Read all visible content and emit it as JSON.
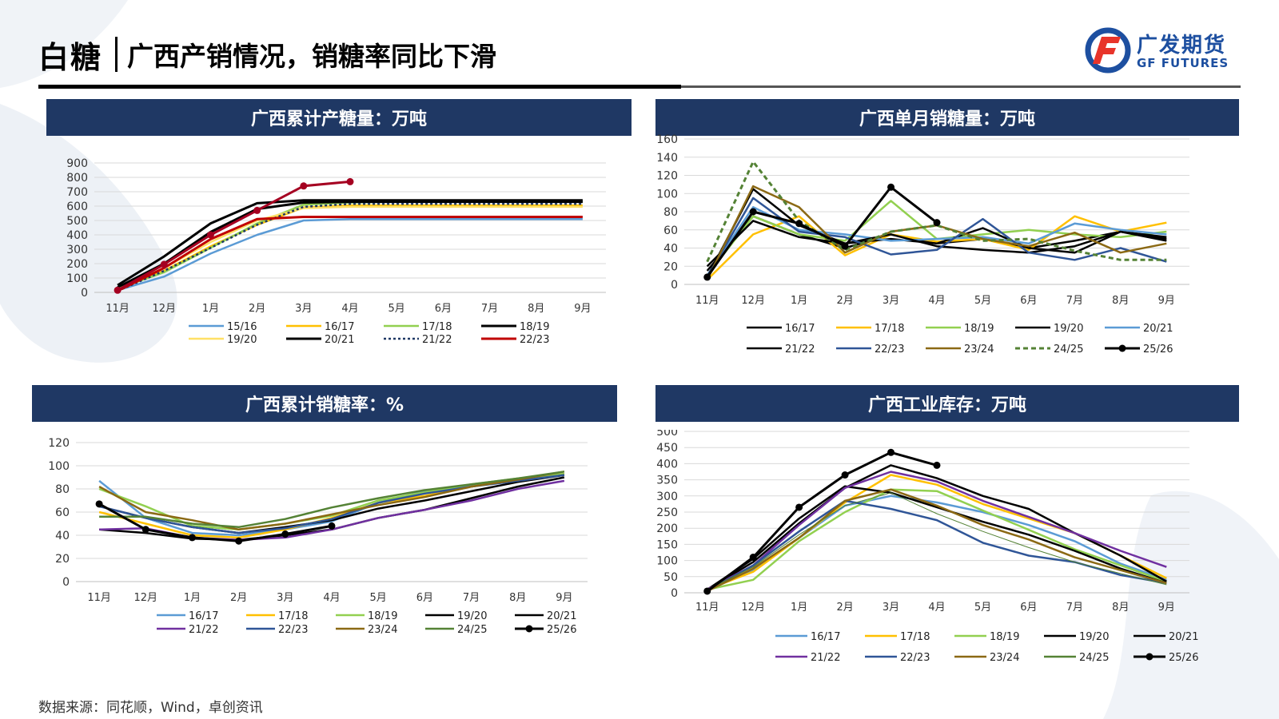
{
  "header": {
    "title": "白糖",
    "subtitle": "广西产销情况，销糖率同比下滑"
  },
  "logo": {
    "name_cn": "广发期货",
    "name_en": "GF FUTURES"
  },
  "footer": {
    "source": "数据来源：同花顺，Wind，卓创资讯"
  },
  "colors": {
    "panel_title_bg": "#1f3864",
    "brand_blue": "#1d4fa0",
    "brand_red": "#e8342a"
  },
  "chart_data": [
    {
      "id": "cum_production",
      "title": "广西累计产糖量：万吨",
      "type": "line",
      "categories": [
        "11月",
        "12月",
        "1月",
        "2月",
        "3月",
        "4月",
        "5月",
        "6月",
        "7月",
        "8月",
        "9月"
      ],
      "ylim": [
        0,
        900
      ],
      "yticks": [
        0,
        100,
        200,
        300,
        400,
        500,
        600,
        700,
        800,
        900
      ],
      "grid": true,
      "legend_position": "bottom",
      "series": [
        {
          "name": "15/16",
          "color": "#5b9bd5",
          "dash": "",
          "marker": false,
          "width": 2.5,
          "values": [
            15,
            110,
            270,
            400,
            500,
            510,
            510,
            510,
            510,
            510,
            510
          ]
        },
        {
          "name": "16/17",
          "color": "#ffc000",
          "dash": "",
          "marker": false,
          "width": 2.5,
          "values": [
            20,
            150,
            320,
            470,
            590,
            605,
            605,
            605,
            605,
            605,
            605
          ]
        },
        {
          "name": "17/18",
          "color": "#92d050",
          "dash": "",
          "marker": false,
          "width": 2.5,
          "values": [
            25,
            140,
            310,
            480,
            610,
            625,
            630,
            630,
            630,
            630,
            630
          ]
        },
        {
          "name": "18/19",
          "color": "#000000",
          "dash": "",
          "marker": false,
          "width": 3,
          "values": [
            35,
            200,
            420,
            580,
            625,
            630,
            630,
            630,
            630,
            630,
            630
          ]
        },
        {
          "name": "19/20",
          "color": "#ffe066",
          "dash": "",
          "marker": false,
          "width": 2.5,
          "values": [
            20,
            170,
            350,
            500,
            585,
            595,
            595,
            595,
            595,
            595,
            595
          ]
        },
        {
          "name": "20/21",
          "color": "#000000",
          "dash": "",
          "marker": false,
          "width": 3,
          "values": [
            50,
            250,
            480,
            620,
            640,
            640,
            640,
            640,
            640,
            640,
            640
          ]
        },
        {
          "name": "21/22",
          "color": "#1f3864",
          "dash": "3,3",
          "marker": false,
          "width": 2.5,
          "values": [
            10,
            150,
            310,
            470,
            595,
            615,
            615,
            615,
            615,
            615,
            615
          ]
        },
        {
          "name": "22/23",
          "color": "#c00000",
          "dash": "",
          "marker": false,
          "width": 3,
          "values": [
            10,
            170,
            370,
            510,
            525,
            525,
            525,
            525,
            525,
            525,
            525
          ]
        },
        {
          "name": "",
          "color": "#a50021",
          "dash": "",
          "marker": true,
          "width": 3,
          "values": [
            15,
            195,
            400,
            570,
            740,
            770,
            null,
            null,
            null,
            null,
            null
          ]
        }
      ]
    },
    {
      "id": "monthly_sales",
      "title": "广西单月销糖量：万吨",
      "type": "line",
      "categories": [
        "11月",
        "12月",
        "1月",
        "2月",
        "3月",
        "4月",
        "5月",
        "6月",
        "7月",
        "8月",
        "9月"
      ],
      "ylim": [
        0,
        160
      ],
      "yticks": [
        0,
        20,
        40,
        60,
        80,
        100,
        120,
        140,
        160
      ],
      "grid": true,
      "legend_position": "bottom",
      "series": [
        {
          "name": "16/17",
          "color": "#000000",
          "dash": "",
          "marker": false,
          "width": 2.5,
          "values": [
            15,
            75,
            55,
            40,
            55,
            45,
            50,
            40,
            48,
            58,
            50
          ]
        },
        {
          "name": "17/18",
          "color": "#ffc000",
          "dash": "",
          "marker": false,
          "width": 2.5,
          "values": [
            5,
            55,
            75,
            32,
            55,
            47,
            50,
            38,
            75,
            58,
            68
          ]
        },
        {
          "name": "18/19",
          "color": "#92d050",
          "dash": "",
          "marker": false,
          "width": 2.5,
          "values": [
            10,
            75,
            55,
            48,
            92,
            50,
            55,
            60,
            55,
            52,
            58
          ]
        },
        {
          "name": "19/20",
          "color": "#000000",
          "dash": "",
          "marker": false,
          "width": 2.5,
          "values": [
            20,
            70,
            52,
            45,
            50,
            45,
            62,
            40,
            35,
            58,
            52
          ]
        },
        {
          "name": "20/21",
          "color": "#5b9bd5",
          "dash": "",
          "marker": false,
          "width": 2.5,
          "values": [
            10,
            85,
            60,
            55,
            48,
            50,
            52,
            45,
            67,
            60,
            55
          ]
        },
        {
          "name": "21/22",
          "color": "#000000",
          "dash": "",
          "marker": false,
          "width": 2.5,
          "values": [
            8,
            105,
            65,
            45,
            55,
            42,
            38,
            35,
            42,
            58,
            48
          ]
        },
        {
          "name": "22/23",
          "color": "#2f5597",
          "dash": "",
          "marker": false,
          "width": 2.5,
          "values": [
            8,
            95,
            58,
            52,
            33,
            38,
            72,
            35,
            27,
            40,
            25
          ]
        },
        {
          "name": "23/24",
          "color": "#8b6914",
          "dash": "",
          "marker": false,
          "width": 2.5,
          "values": [
            5,
            108,
            85,
            35,
            58,
            65,
            50,
            42,
            57,
            35,
            45
          ]
        },
        {
          "name": "24/25",
          "color": "#548235",
          "dash": "6,4",
          "marker": false,
          "width": 3,
          "values": [
            25,
            135,
            70,
            38,
            58,
            65,
            48,
            50,
            37,
            27,
            27
          ]
        },
        {
          "name": "25/26",
          "color": "#000000",
          "dash": "",
          "marker": true,
          "width": 3,
          "values": [
            8,
            80,
            67,
            42,
            107,
            68,
            null,
            null,
            null,
            null,
            null
          ]
        }
      ]
    },
    {
      "id": "cum_sales_rate",
      "title": "广西累计销糖率：%",
      "type": "line",
      "categories": [
        "11月",
        "12月",
        "1月",
        "2月",
        "3月",
        "4月",
        "5月",
        "6月",
        "7月",
        "8月",
        "9月"
      ],
      "ylim": [
        0,
        120
      ],
      "yticks": [
        0,
        20,
        40,
        60,
        80,
        100,
        120
      ],
      "grid": true,
      "legend_position": "bottom",
      "series": [
        {
          "name": "16/17",
          "color": "#5b9bd5",
          "dash": "",
          "marker": false,
          "width": 2.5,
          "values": [
            87,
            55,
            42,
            40,
            45,
            52,
            68,
            78,
            83,
            88,
            93
          ]
        },
        {
          "name": "17/18",
          "color": "#ffc000",
          "dash": "",
          "marker": false,
          "width": 2.5,
          "values": [
            60,
            50,
            40,
            38,
            45,
            55,
            68,
            74,
            82,
            88,
            93
          ]
        },
        {
          "name": "18/19",
          "color": "#92d050",
          "dash": "",
          "marker": false,
          "width": 2.5,
          "values": [
            80,
            65,
            48,
            45,
            50,
            57,
            70,
            77,
            84,
            89,
            93
          ]
        },
        {
          "name": "19/20",
          "color": "#000000",
          "dash": "",
          "marker": false,
          "width": 2.5,
          "values": [
            65,
            55,
            47,
            42,
            47,
            53,
            63,
            70,
            78,
            86,
            92
          ]
        },
        {
          "name": "20/21",
          "color": "#000000",
          "dash": "",
          "marker": false,
          "width": 2.5,
          "values": [
            45,
            42,
            37,
            36,
            40,
            45,
            55,
            62,
            72,
            82,
            90
          ]
        },
        {
          "name": "21/22",
          "color": "#7030a0",
          "dash": "",
          "marker": false,
          "width": 2.5,
          "values": [
            45,
            46,
            38,
            36,
            38,
            45,
            55,
            62,
            70,
            80,
            87
          ]
        },
        {
          "name": "22/23",
          "color": "#2f5597",
          "dash": "",
          "marker": false,
          "width": 2.5,
          "values": [
            65,
            55,
            47,
            42,
            46,
            54,
            68,
            76,
            82,
            87,
            92
          ]
        },
        {
          "name": "23/24",
          "color": "#8b6914",
          "dash": "",
          "marker": false,
          "width": 2.5,
          "values": [
            82,
            60,
            53,
            45,
            50,
            58,
            66,
            73,
            82,
            88,
            95
          ]
        },
        {
          "name": "24/25",
          "color": "#548235",
          "dash": "",
          "marker": false,
          "width": 2.5,
          "values": [
            56,
            56,
            50,
            47,
            54,
            64,
            72,
            79,
            84,
            89,
            95
          ]
        },
        {
          "name": "25/26",
          "color": "#000000",
          "dash": "",
          "marker": true,
          "width": 3,
          "values": [
            67,
            45,
            38,
            35,
            41,
            48,
            null,
            null,
            null,
            null,
            null
          ]
        }
      ]
    },
    {
      "id": "industrial_inventory",
      "title": "广西工业库存：万吨",
      "type": "line",
      "categories": [
        "11月",
        "12月",
        "1月",
        "2月",
        "3月",
        "4月",
        "5月",
        "6月",
        "7月",
        "8月",
        "9月"
      ],
      "ylim": [
        0,
        500
      ],
      "yticks": [
        0,
        50,
        100,
        150,
        200,
        250,
        300,
        350,
        400,
        450,
        500
      ],
      "grid": true,
      "legend_position": "bottom",
      "series": [
        {
          "name": "16/17",
          "color": "#5b9bd5",
          "dash": "",
          "marker": false,
          "width": 2.5,
          "values": [
            10,
            70,
            170,
            270,
            300,
            280,
            250,
            210,
            160,
            90,
            40
          ]
        },
        {
          "name": "17/18",
          "color": "#ffc000",
          "dash": "",
          "marker": false,
          "width": 2.5,
          "values": [
            10,
            65,
            170,
            280,
            365,
            335,
            275,
            230,
            185,
            115,
            45
          ]
        },
        {
          "name": "18/19",
          "color": "#92d050",
          "dash": "",
          "marker": false,
          "width": 2.5,
          "values": [
            10,
            40,
            160,
            250,
            320,
            315,
            255,
            195,
            135,
            85,
            35
          ]
        },
        {
          "name": "19/20",
          "color": "#000000",
          "dash": "",
          "marker": false,
          "width": 2.5,
          "values": [
            10,
            95,
            215,
            325,
            395,
            355,
            300,
            260,
            185,
            115,
            35
          ]
        },
        {
          "name": "20/21",
          "color": "#000000",
          "dash": "",
          "marker": false,
          "width": 2.5,
          "values": [
            10,
            105,
            230,
            330,
            310,
            265,
            220,
            180,
            130,
            75,
            30
          ]
        },
        {
          "name": "21/22",
          "color": "#7030a0",
          "dash": "",
          "marker": false,
          "width": 2.5,
          "values": [
            10,
            85,
            210,
            325,
            375,
            345,
            285,
            235,
            185,
            130,
            80
          ]
        },
        {
          "name": "22/23",
          "color": "#2f5597",
          "dash": "",
          "marker": false,
          "width": 2.5,
          "values": [
            5,
            85,
            190,
            285,
            260,
            225,
            155,
            115,
            95,
            55,
            30
          ]
        },
        {
          "name": "23/24",
          "color": "#8b6914",
          "dash": "",
          "marker": false,
          "width": 2.5,
          "values": [
            5,
            75,
            170,
            285,
            320,
            270,
            210,
            165,
            110,
            70,
            30
          ]
        },
        {
          "name": "24/25",
          "color": "#548235",
          "dash": "",
          "marker": false,
          "width": 1,
          "values": [
            10,
            80,
            180,
            270,
            310,
            245,
            190,
            140,
            95,
            60,
            25
          ]
        },
        {
          "name": "25/26",
          "color": "#000000",
          "dash": "",
          "marker": true,
          "width": 3,
          "values": [
            5,
            110,
            265,
            365,
            435,
            395,
            null,
            null,
            null,
            null,
            null
          ]
        }
      ]
    }
  ]
}
